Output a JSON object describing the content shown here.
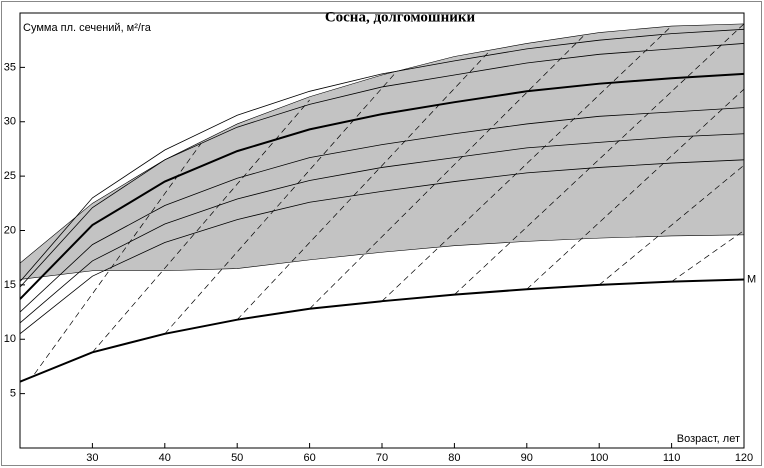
{
  "chart_data": {
    "type": "line",
    "title": "Сосна, долгомошники",
    "y_label": "Сумма пл. сечений, м²/га",
    "x_label": "Возраст, лет",
    "xlim": [
      20,
      120
    ],
    "ylim": [
      0,
      40
    ],
    "xticks": [
      30,
      40,
      50,
      60,
      70,
      80,
      90,
      100,
      110,
      120
    ],
    "yticks": [
      5,
      10,
      15,
      20,
      25,
      30,
      35
    ],
    "area": {
      "color": "#b4b4b4",
      "x": [
        20,
        30,
        40,
        50,
        60,
        70,
        80,
        90,
        100,
        110,
        120
      ],
      "upper": [
        17,
        22.5,
        26.5,
        29.8,
        32.3,
        34.3,
        36,
        37.2,
        38.2,
        38.8,
        39
      ],
      "lower": [
        15.5,
        16.3,
        16.3,
        16.5,
        17.3,
        18,
        18.6,
        19,
        19.3,
        19.5,
        19.6
      ]
    },
    "x": [
      20,
      30,
      40,
      50,
      60,
      70,
      80,
      90,
      100,
      110,
      120
    ],
    "series": [
      {
        "color": "#000",
        "width": 2,
        "values": [
          13.7,
          20.5,
          24.5,
          27.3,
          29.3,
          30.7,
          31.8,
          32.8,
          33.5,
          34,
          34.4
        ]
      },
      {
        "name": "M",
        "color": "#000",
        "width": 2,
        "values": [
          6.1,
          8.8,
          10.5,
          11.8,
          12.8,
          13.5,
          14.1,
          14.6,
          15,
          15.3,
          15.5
        ]
      },
      {
        "color": "#000",
        "width": 0.8,
        "values": [
          10.5,
          15.8,
          18.9,
          21,
          22.6,
          23.6,
          24.5,
          25.3,
          25.8,
          26.2,
          26.5
        ]
      },
      {
        "color": "#000",
        "width": 0.8,
        "values": [
          11.5,
          17.2,
          20.6,
          22.9,
          24.6,
          25.8,
          26.7,
          27.6,
          28.1,
          28.6,
          28.9
        ]
      },
      {
        "color": "#000",
        "width": 0.8,
        "values": [
          12.5,
          18.7,
          22.3,
          24.8,
          26.7,
          27.9,
          28.9,
          29.8,
          30.5,
          30.9,
          31.3
        ]
      },
      {
        "color": "#000",
        "width": 0.8,
        "values": [
          14.8,
          22.1,
          26.5,
          29.5,
          31.6,
          33.2,
          34.3,
          35.4,
          36.2,
          36.7,
          37.2
        ]
      },
      {
        "color": "#000",
        "width": 0.8,
        "values": [
          15.3,
          23,
          27.4,
          30.6,
          32.8,
          34.4,
          35.6,
          36.7,
          37.5,
          38.1,
          38.5
        ]
      }
    ],
    "dashed": [
      {
        "x": [
          22,
          45
        ],
        "values": [
          6.8,
          28
        ]
      },
      {
        "x": [
          30,
          60
        ],
        "values": [
          8.8,
          32
        ]
      },
      {
        "x": [
          40,
          72
        ],
        "values": [
          10.5,
          34.6
        ]
      },
      {
        "x": [
          50,
          85
        ],
        "values": [
          11.8,
          36.6
        ]
      },
      {
        "x": [
          60,
          98
        ],
        "values": [
          12.8,
          38
        ]
      },
      {
        "x": [
          70,
          110
        ],
        "values": [
          13.5,
          38.8
        ]
      },
      {
        "x": [
          80,
          120
        ],
        "values": [
          14.1,
          39
        ]
      },
      {
        "x": [
          90,
          120
        ],
        "values": [
          14.6,
          33
        ]
      },
      {
        "x": [
          100,
          120
        ],
        "values": [
          15,
          26
        ]
      },
      {
        "x": [
          110,
          120
        ],
        "values": [
          15.3,
          20
        ]
      }
    ]
  }
}
